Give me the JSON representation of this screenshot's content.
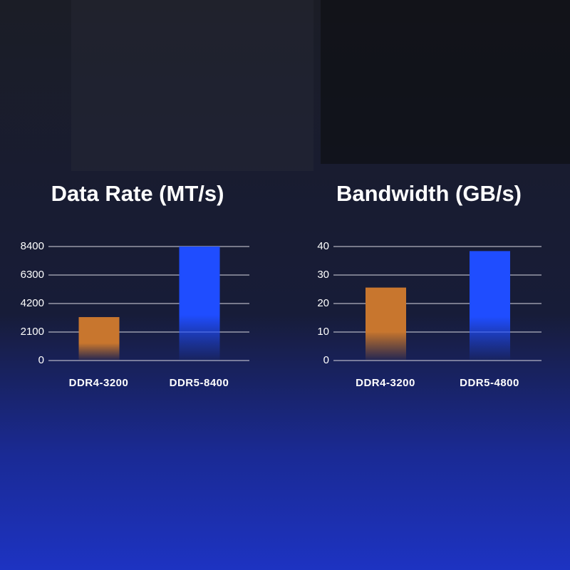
{
  "chart_data": [
    {
      "type": "bar",
      "title": "Data Rate (MT/s)",
      "categories": [
        "DDR4-3200",
        "DDR5-8400"
      ],
      "values": [
        3200,
        8400
      ],
      "colors": [
        "#c8762e",
        "#1f4dff"
      ],
      "ylim": [
        0,
        8400
      ],
      "yticks": [
        0,
        2100,
        4200,
        6300,
        8400
      ],
      "grid": true
    },
    {
      "type": "bar",
      "title": "Bandwidth (GB/s)",
      "categories": [
        "DDR4-3200",
        "DDR5-4800"
      ],
      "values": [
        25.6,
        38.4
      ],
      "colors": [
        "#c8762e",
        "#1f4dff"
      ],
      "ylim": [
        0,
        40
      ],
      "yticks": [
        0,
        10,
        20,
        30,
        40
      ],
      "grid": true
    }
  ]
}
